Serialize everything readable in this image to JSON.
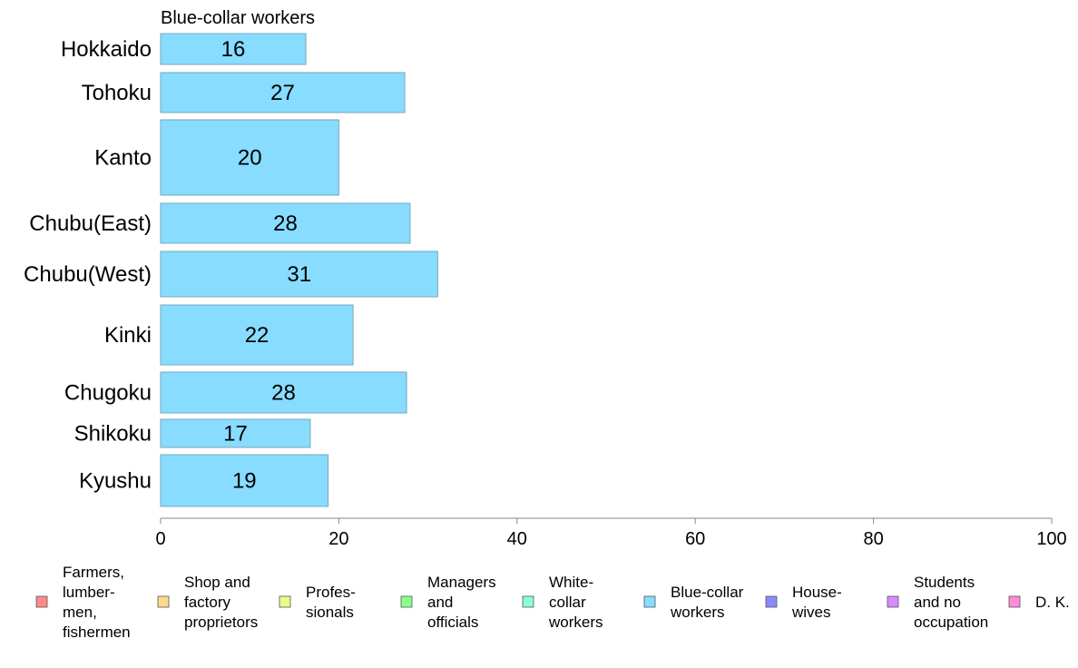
{
  "chart_data": {
    "type": "bar",
    "orientation": "horizontal",
    "title": "Blue-collar workers",
    "categories": [
      "Hokkaido",
      "Tohoku",
      "Kanto",
      "Chubu(East)",
      "Chubu(West)",
      "Kinki",
      "Chugoku",
      "Shikoku",
      "Kyushu"
    ],
    "values": [
      16,
      27,
      20,
      28,
      31,
      22,
      28,
      17,
      19
    ],
    "bar_value_precise": [
      16.3,
      27.4,
      20.0,
      28.0,
      31.1,
      21.6,
      27.6,
      16.8,
      18.8
    ],
    "xlim": [
      0,
      100
    ],
    "x_ticks": [
      0,
      20,
      40,
      60,
      80,
      100
    ],
    "bar_color": "#87dcff",
    "grid": false,
    "legend_placement": "bottom",
    "legend": [
      {
        "label": [
          "Farmers,",
          "lumber-",
          "men,",
          "fishermen"
        ],
        "color": "#ff8a8a"
      },
      {
        "label": [
          "Shop and",
          "factory",
          "proprietors"
        ],
        "color": "#ffd98a"
      },
      {
        "label": [
          "Profes-",
          "sionals"
        ],
        "color": "#e6ff8a"
      },
      {
        "label": [
          "Managers",
          "and",
          "officials"
        ],
        "color": "#8aff8a"
      },
      {
        "label": [
          "White-",
          "collar",
          "workers"
        ],
        "color": "#8affd8"
      },
      {
        "label": [
          "Blue-collar",
          "workers"
        ],
        "color": "#87dcff"
      },
      {
        "label": [
          "House-",
          "wives"
        ],
        "color": "#8a8aff"
      },
      {
        "label": [
          "Students",
          "and no",
          "occupation"
        ],
        "color": "#d98aff"
      },
      {
        "label": [
          "D. K."
        ],
        "color": "#ff8ad9"
      }
    ]
  }
}
